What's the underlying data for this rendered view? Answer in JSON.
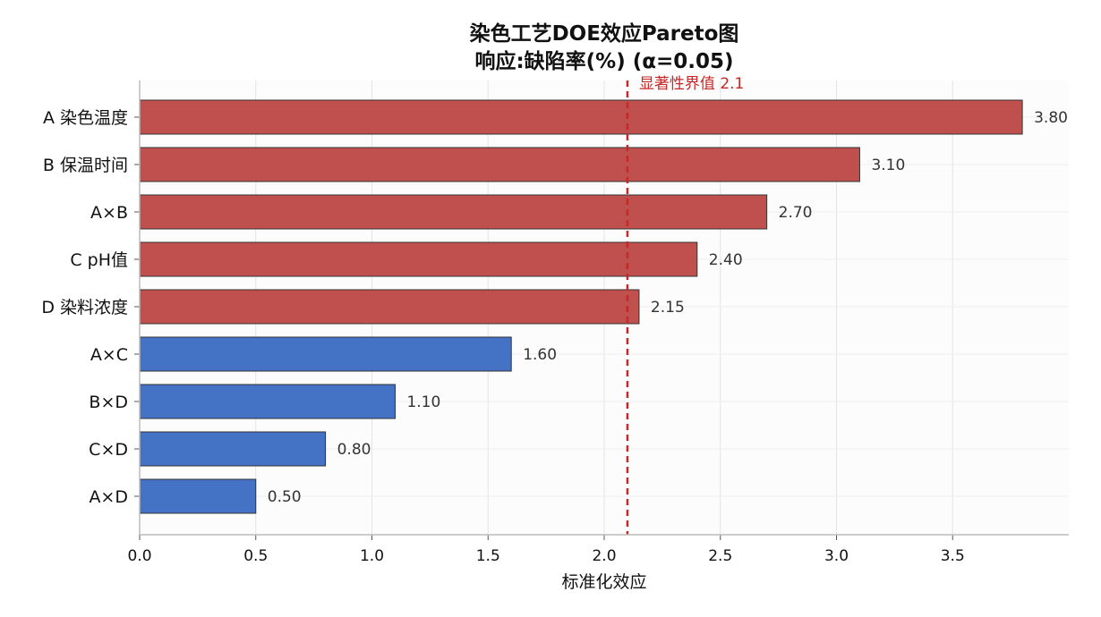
{
  "chart_data": {
    "type": "bar",
    "orientation": "horizontal",
    "title_line1": "染色工艺DOE效应Pareto图",
    "title_line2": "响应:缺陷率(%)  (α=0.05)",
    "xlabel": "标准化效应",
    "ylabel": "",
    "xlim": [
      0,
      4.0
    ],
    "xticks": [
      "0.0",
      "0.5",
      "1.0",
      "1.5",
      "2.0",
      "2.5",
      "3.0",
      "3.5"
    ],
    "categories": [
      "A 染色温度",
      "B 保温时间",
      "A×B",
      "C pH值",
      "D 染料浓度",
      "A×C",
      "B×D",
      "C×D",
      "A×D"
    ],
    "values": [
      3.8,
      3.1,
      2.7,
      2.4,
      2.15,
      1.6,
      1.1,
      0.8,
      0.5
    ],
    "value_labels": [
      "3.80",
      "3.10",
      "2.70",
      "2.40",
      "2.15",
      "1.60",
      "1.10",
      "0.80",
      "0.50"
    ],
    "threshold": {
      "value": 2.1,
      "label": "显著性界值 2.1",
      "color": "#c62828"
    },
    "colors": {
      "significant": "#c0504d",
      "not_significant": "#4472c4",
      "edge": "#333333"
    },
    "grid": true,
    "legend": "none"
  }
}
